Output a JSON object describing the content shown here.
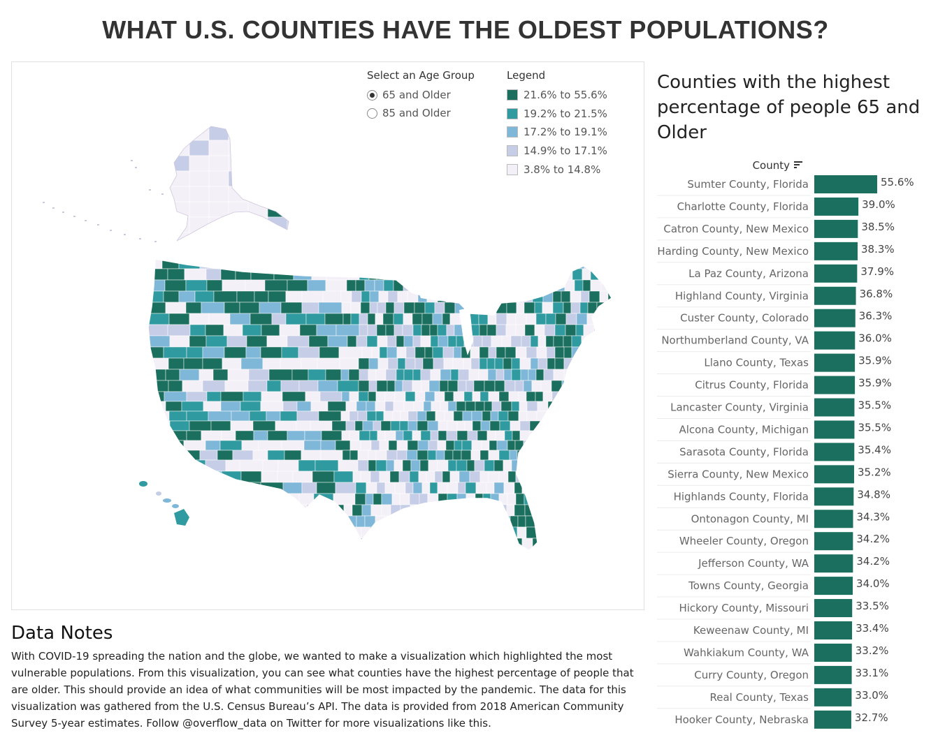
{
  "title": "WHAT U.S. COUNTIES HAVE THE OLDEST POPULATIONS?",
  "selector": {
    "label": "Select an Age Group",
    "options": [
      {
        "label": "65 and Older",
        "selected": true
      },
      {
        "label": "85 and Older",
        "selected": false
      }
    ]
  },
  "legend": {
    "label": "Legend",
    "items": [
      {
        "label": "21.6% to 55.6%",
        "color": "#1b6f5e"
      },
      {
        "label": "19.2% to 21.5%",
        "color": "#2f9aa0"
      },
      {
        "label": "17.2% to 19.1%",
        "color": "#7fb7d8"
      },
      {
        "label": "14.9% to 17.1%",
        "color": "#c6cde6"
      },
      {
        "label": "3.8% to 14.8%",
        "color": "#f4f0f7"
      }
    ]
  },
  "notes": {
    "title": "Data Notes",
    "body": "With COVID-19 spreading the nation and the globe, we wanted to make a visualization which highlighted the most vulnerable populations. From this visualization, you can see what counties have the highest percentage of people that are older. This should provide an idea of what communities will be most impacted by the pandemic. The data for this visualization was gathered from the U.S. Census Bureau’s API. The data is provided from 2018 American Community Survey 5-year estimates. Follow @overflow_data on Twitter for more visualizations like this."
  },
  "ranking_title": "Counties with the highest percentage of people 65 and Older",
  "chart_data": [
    {
      "type": "map",
      "region": "United States counties",
      "classes": [
        "21.6% to 55.6%",
        "19.2% to 21.5%",
        "17.2% to 19.1%",
        "14.9% to 17.1%",
        "3.8% to 14.8%"
      ]
    },
    {
      "type": "bar",
      "orientation": "horizontal",
      "xlabel": "",
      "ylabel": "County",
      "bar_color": "#1b6f5e",
      "categories": [
        "Sumter County, Florida",
        "Charlotte County, Florida",
        "Catron County, New Mexico",
        "Harding County, New Mexico",
        "La Paz County, Arizona",
        "Highland County, Virginia",
        "Custer County, Colorado",
        "Northumberland County, VA",
        "Llano County, Texas",
        "Citrus County, Florida",
        "Lancaster County, Virginia",
        "Alcona County, Michigan",
        "Sarasota County, Florida",
        "Sierra County, New Mexico",
        "Highlands County, Florida",
        "Ontonagon County, MI",
        "Wheeler County, Oregon",
        "Jefferson County, WA",
        "Towns County, Georgia",
        "Hickory County, Missouri",
        "Keweenaw County, MI",
        "Wahkiakum County, WA",
        "Curry County, Oregon",
        "Real County, Texas",
        "Hooker County, Nebraska"
      ],
      "values": [
        55.6,
        39.0,
        38.5,
        38.3,
        37.9,
        36.8,
        36.3,
        36.0,
        35.9,
        35.9,
        35.5,
        35.5,
        35.4,
        35.2,
        34.8,
        34.3,
        34.2,
        34.2,
        34.0,
        33.5,
        33.4,
        33.2,
        33.1,
        33.0,
        32.7
      ],
      "labels": [
        "55.6%",
        "39.0%",
        "38.5%",
        "38.3%",
        "37.9%",
        "36.8%",
        "36.3%",
        "36.0%",
        "35.9%",
        "35.9%",
        "35.5%",
        "35.5%",
        "35.4%",
        "35.2%",
        "34.8%",
        "34.3%",
        "34.2%",
        "34.2%",
        "34.0%",
        "33.5%",
        "33.4%",
        "33.2%",
        "33.1%",
        "33.0%",
        "32.7%"
      ]
    }
  ]
}
